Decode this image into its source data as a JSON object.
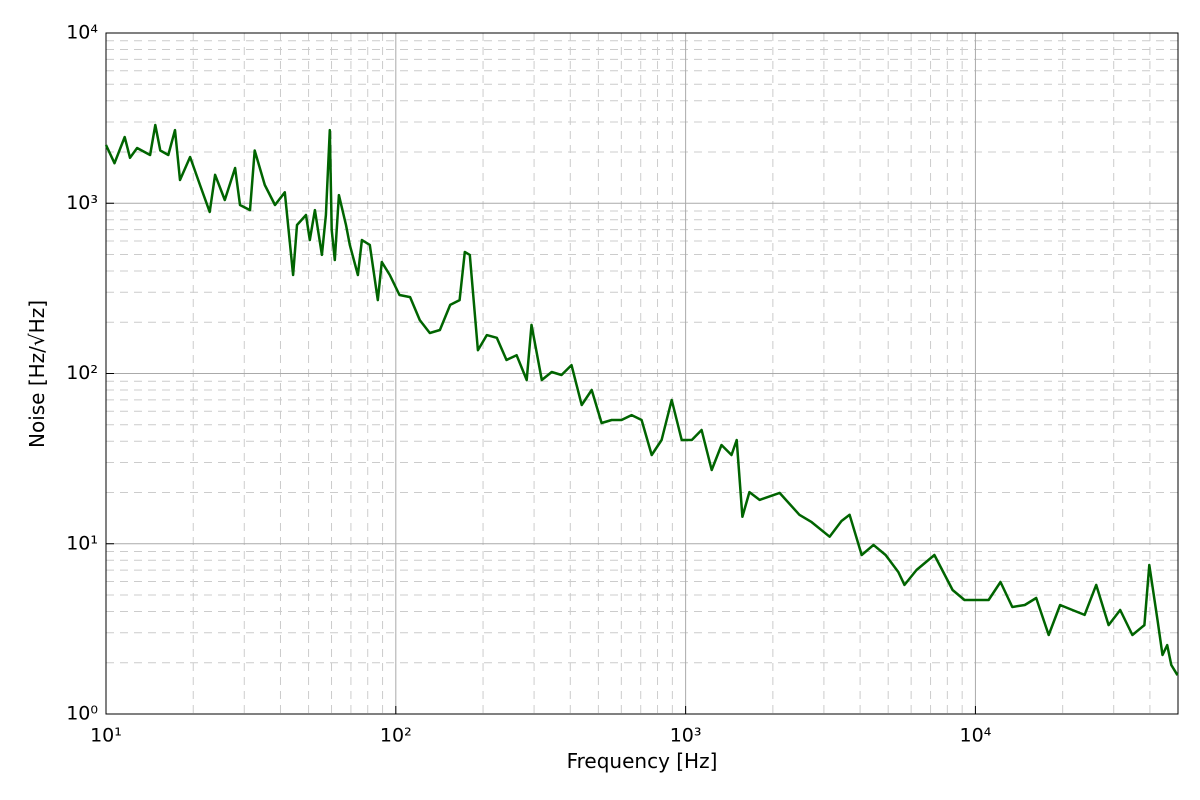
{
  "chart_data": {
    "type": "line",
    "xlabel": "Frequency [Hz]",
    "ylabel": "Noise [Hz/√Hz]",
    "xscale": "log",
    "yscale": "log",
    "xlim": [
      10,
      50000
    ],
    "ylim": [
      1,
      10000
    ],
    "xticks": [
      {
        "value": 10,
        "label": "10¹"
      },
      {
        "value": 100,
        "label": "10²"
      },
      {
        "value": 1000,
        "label": "10³"
      },
      {
        "value": 10000,
        "label": "10⁴"
      }
    ],
    "yticks": [
      {
        "value": 1,
        "label": "10⁰"
      },
      {
        "value": 10,
        "label": "10¹"
      },
      {
        "value": 100,
        "label": "10²"
      },
      {
        "value": 1000,
        "label": "10³"
      },
      {
        "value": 10000,
        "label": "10⁴"
      }
    ],
    "grid": true,
    "minor_grid": true,
    "color": "#006400",
    "x": [
      10,
      10.7,
      11.6,
      12.1,
      12.8,
      14.2,
      14.8,
      15.4,
      16.4,
      17.3,
      18.0,
      19.5,
      21.1,
      22.8,
      23.8,
      25.7,
      27.9,
      29.0,
      31.4,
      32.6,
      35.3,
      38.3,
      41.4,
      44.2,
      45.6,
      49.0,
      50.5,
      52.6,
      55.6,
      57.4,
      59.2,
      60.1,
      61.6,
      63.6,
      67.3,
      69.4,
      74.0,
      76.4,
      81.3,
      86.7,
      89.5,
      95.3,
      103,
      112,
      121,
      131,
      142,
      154,
      166,
      173,
      180,
      192,
      206,
      223,
      241,
      261,
      283,
      294,
      319,
      345,
      373,
      404,
      438,
      474,
      513,
      556,
      601,
      651,
      705,
      764,
      826,
      895,
      969,
      1050,
      1135,
      1230,
      1330,
      1440,
      1500,
      1570,
      1660,
      1800,
      2110,
      2470,
      2720,
      3140,
      3450,
      3680,
      4050,
      4450,
      4900,
      5420,
      5690,
      6260,
      7220,
      8340,
      9170,
      10100,
      11100,
      12200,
      13400,
      14800,
      16200,
      17900,
      19600,
      21600,
      23800,
      26100,
      28800,
      31600,
      34800,
      38300,
      39800,
      42500,
      44200,
      45900,
      47400,
      49800
    ],
    "values": [
      2200,
      1720,
      2450,
      1850,
      2110,
      1920,
      2880,
      2040,
      1920,
      2690,
      1370,
      1870,
      1280,
      889,
      1470,
      1045,
      1610,
      977,
      912,
      2040,
      1280,
      977,
      1160,
      379,
      745,
      853,
      608,
      912,
      497,
      853,
      2690,
      697,
      464,
      1117,
      745,
      569,
      379,
      608,
      569,
      270,
      452,
      379,
      289,
      281,
      206,
      173,
      180,
      253,
      270,
      517,
      497,
      137,
      168,
      162,
      120,
      128,
      91.6,
      193,
      91.6,
      102,
      98,
      112,
      65.3,
      80,
      51.2,
      53.3,
      53.3,
      57,
      53.3,
      33.2,
      40.7,
      69.9,
      40.7,
      40.7,
      46.6,
      27.1,
      38,
      33.2,
      40.7,
      14.4,
      20.1,
      18.1,
      19.9,
      14.8,
      13.4,
      11.0,
      13.6,
      14.8,
      8.59,
      9.84,
      8.59,
      6.82,
      5.73,
      7.01,
      8.59,
      5.35,
      4.67,
      4.67,
      4.67,
      5.96,
      4.25,
      4.37,
      4.8,
      2.91,
      4.37,
      4.08,
      3.82,
      5.73,
      3.33,
      4.08,
      2.91,
      3.33,
      7.5,
      3.57,
      2.22,
      2.54,
      1.94,
      1.69
    ]
  }
}
